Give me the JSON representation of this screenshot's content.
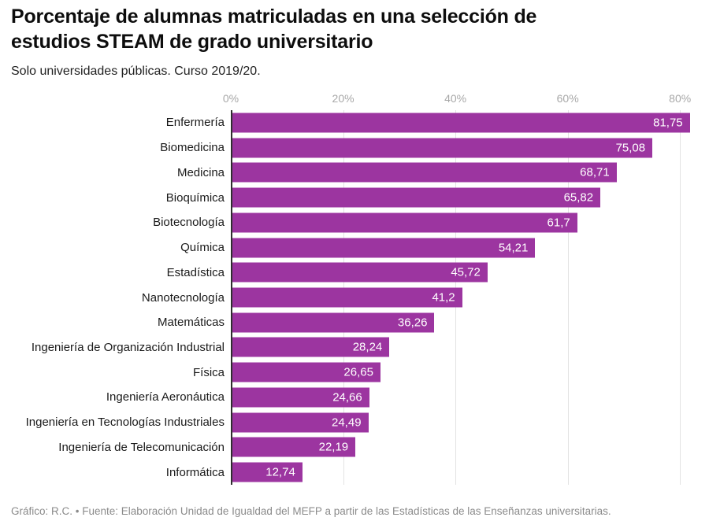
{
  "header": {
    "title": "Porcentaje de alumnas matriculadas en una selección de estudios STEAM de grado universitario",
    "subtitle": "Solo universidades públicas. Curso 2019/20."
  },
  "footer": {
    "text": "Gráfico: R.C. • Fuente: Elaboración Unidad de Igualdad del MEFP a partir de las Estadísticas de las Enseñanzas universitarias."
  },
  "chart_data": {
    "type": "bar",
    "orientation": "horizontal",
    "title": "Porcentaje de alumnas matriculadas en una selección de estudios STEAM de grado universitario",
    "subtitle": "Solo universidades públicas. Curso 2019/20.",
    "categories": [
      "Enfermería",
      "Biomedicina",
      "Medicina",
      "Bioquímica",
      "Biotecnología",
      "Química",
      "Estadística",
      "Nanotecnología",
      "Matemáticas",
      "Ingeniería de Organización Industrial",
      "Física",
      "Ingeniería Aeronáutica",
      "Ingeniería en Tecnologías Industriales",
      "Ingeniería de Telecomunicación",
      "Informática"
    ],
    "values": [
      81.75,
      75.08,
      68.71,
      65.82,
      61.7,
      54.21,
      45.72,
      41.2,
      36.26,
      28.24,
      26.65,
      24.66,
      24.49,
      22.19,
      12.74
    ],
    "value_labels": [
      "81,75",
      "75,08",
      "68,71",
      "65,82",
      "61,7",
      "54,21",
      "45,72",
      "41,2",
      "36,26",
      "28,24",
      "26,65",
      "24,66",
      "24,49",
      "22,19",
      "12,74"
    ],
    "xlabel": "",
    "ylabel": "",
    "x_ticks": [
      "0%",
      "20%",
      "40%",
      "60%",
      "80%"
    ],
    "x_tick_values": [
      0,
      20,
      40,
      60,
      80
    ],
    "xlim": [
      0,
      83.2
    ],
    "grid": true,
    "legend": "none",
    "bar_color": "#9c35a0",
    "value_label_color": "#ffffff",
    "gridline_color": "#e3e3e3",
    "axis_line_color": "#2f2f2f",
    "tick_label_color": "#a8a8a8"
  }
}
